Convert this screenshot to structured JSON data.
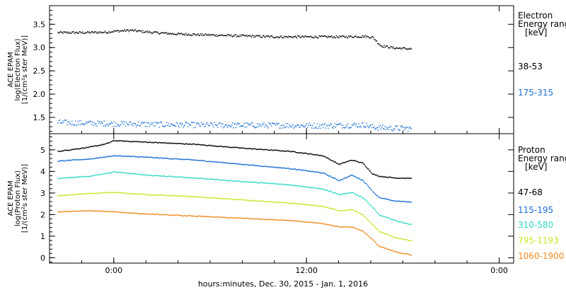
{
  "colors": {
    "black": "#000000",
    "blue": "#1a6fd1",
    "cyan": "#33d9c6",
    "yellow": "#c8e62a",
    "orange": "#f08a1f"
  },
  "x_label": "hours:minutes, Dec. 30, 2015 - Jan.  1, 2016",
  "x_ticks": [
    {
      "hours": 0,
      "label": "0:00"
    },
    {
      "hours": 12,
      "label": "12:00"
    },
    {
      "hours": 24,
      "label": "0:00"
    }
  ],
  "chart_data": [
    {
      "type": "scatter",
      "panel": "electron",
      "ylabel_lines": [
        "ACE EPAM",
        "log(Electron Flux)",
        "[1/(cm²s ster MeV)]"
      ],
      "yticks": [
        1.5,
        2.0,
        2.5,
        3.0,
        3.5
      ],
      "ylim": [
        1.15,
        3.9
      ],
      "xlim": [
        -4,
        24.9
      ],
      "legend": {
        "title": [
          "Electron",
          "Energy ranges",
          "[keV]"
        ],
        "placement": "right"
      },
      "series": [
        {
          "name": "38-53",
          "color": "#000000",
          "x": [
            -3.5,
            -2,
            -0.5,
            0,
            1,
            2.5,
            4,
            6,
            8,
            10,
            12,
            14,
            15.6,
            16.1,
            16.6,
            17.5,
            18.5
          ],
          "y": [
            3.33,
            3.33,
            3.34,
            3.36,
            3.38,
            3.33,
            3.3,
            3.28,
            3.26,
            3.24,
            3.24,
            3.24,
            3.25,
            3.23,
            3.05,
            3.0,
            2.98
          ]
        },
        {
          "name": "175-315",
          "color": "#1a6fd1",
          "x": [
            -3.5,
            -1,
            1,
            4,
            7,
            10,
            13,
            15.6,
            16.1,
            17,
            18.5
          ],
          "y": [
            1.4,
            1.38,
            1.37,
            1.35,
            1.34,
            1.34,
            1.33,
            1.35,
            1.3,
            1.28,
            1.27
          ]
        }
      ]
    },
    {
      "type": "scatter",
      "panel": "proton",
      "ylabel_lines": [
        "ACE EPAM",
        "log(Proton Flux)",
        "[1/(cm²s ster MeV)]"
      ],
      "yticks": [
        0,
        1,
        2,
        3,
        4,
        5
      ],
      "ylim": [
        -0.25,
        5.75
      ],
      "xlim": [
        -4,
        24.9
      ],
      "legend": {
        "title": [
          "Proton",
          "Energy ranges",
          "[keV]"
        ],
        "placement": "right"
      },
      "series": [
        {
          "name": "47-68",
          "color": "#000000",
          "x": [
            -3.5,
            -1.5,
            -0.5,
            0,
            2,
            5,
            8,
            11,
            13,
            14,
            14.8,
            15.5,
            16.1,
            16.5,
            17.5,
            18.5
          ],
          "y": [
            4.95,
            5.15,
            5.3,
            5.45,
            5.38,
            5.28,
            5.1,
            4.95,
            4.75,
            4.35,
            4.55,
            4.4,
            3.9,
            3.8,
            3.72,
            3.7
          ]
        },
        {
          "name": "115-195",
          "color": "#1a6fd1",
          "x": [
            -3.5,
            -1.5,
            0,
            2,
            5,
            8,
            11,
            13,
            14,
            14.8,
            15.5,
            16.1,
            16.5,
            17.5,
            18.5
          ],
          "y": [
            4.5,
            4.6,
            4.75,
            4.68,
            4.55,
            4.35,
            4.15,
            3.95,
            3.6,
            3.85,
            3.6,
            3.1,
            2.8,
            2.65,
            2.6
          ]
        },
        {
          "name": "310-580",
          "color": "#33d9c6",
          "x": [
            -3.5,
            -1.5,
            0,
            2,
            5,
            8,
            11,
            13,
            14,
            14.8,
            15.5,
            16.1,
            16.5,
            17.5,
            18.5
          ],
          "y": [
            3.7,
            3.8,
            4.0,
            3.85,
            3.72,
            3.55,
            3.4,
            3.2,
            2.95,
            3.05,
            2.8,
            2.35,
            2.0,
            1.75,
            1.55
          ]
        },
        {
          "name": "795-1193",
          "color": "#c8e62a",
          "x": [
            -3.5,
            -1.5,
            0,
            2,
            5,
            8,
            11,
            13,
            14,
            14.8,
            15.5,
            16.1,
            16.5,
            17.5,
            18.5
          ],
          "y": [
            2.9,
            3.0,
            3.05,
            2.95,
            2.85,
            2.7,
            2.55,
            2.4,
            2.2,
            2.25,
            2.0,
            1.55,
            1.25,
            0.95,
            0.8
          ]
        },
        {
          "name": "1060-1900",
          "color": "#f08a1f",
          "x": [
            -3.5,
            -1.5,
            0,
            2,
            5,
            8,
            11,
            13,
            14,
            14.8,
            15.5,
            16.1,
            16.5,
            17.5,
            18.5
          ],
          "y": [
            2.15,
            2.2,
            2.15,
            2.05,
            1.95,
            1.85,
            1.75,
            1.6,
            1.45,
            1.45,
            1.25,
            0.85,
            0.55,
            0.3,
            0.15
          ]
        }
      ]
    }
  ]
}
